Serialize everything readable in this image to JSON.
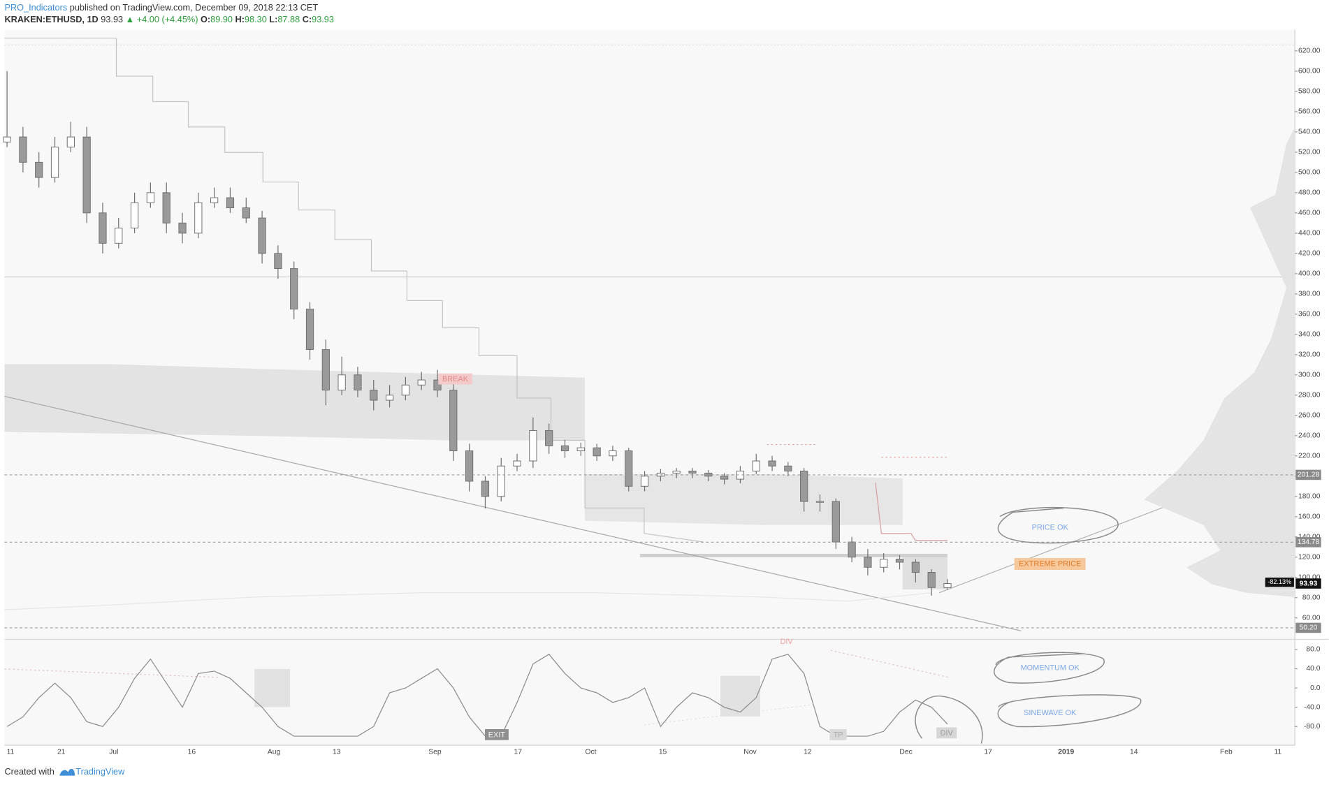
{
  "header": {
    "author": "PRO_Indicators",
    "published": "published on TradingView.com, December 09, 2018 22:13 CET",
    "symbol": "KRAKEN:ETHUSD, 1D",
    "last": "93.93",
    "change": "▲ +4.00 (+4.45%)",
    "open_label": "O:",
    "open": "89.90",
    "high_label": "H:",
    "high": "98.30",
    "low_label": "L:",
    "low": "87.88",
    "close_label": "C:",
    "close": "93.93"
  },
  "x_labels": [
    "11",
    "21",
    "Jul",
    "16",
    "Aug",
    "13",
    "Sep",
    "17",
    "Oct",
    "15",
    "Nov",
    "12",
    "Dec",
    "17",
    "2019",
    "14",
    "Feb",
    "11"
  ],
  "annotations": {
    "break": "BREAK",
    "exit": "EXIT",
    "tp": "TP",
    "div_top": "DIV",
    "div_bottom": "DIV",
    "price_ok": "PRICE OK",
    "extreme_price": "EXTREME PRICE",
    "momentum_ok": "MOMENTUM OK",
    "sinewave_ok": "SINEWAVE OK"
  },
  "footer": {
    "created": "Created with",
    "brand": "TradingView"
  },
  "chart_data": [
    {
      "type": "candlestick",
      "up_color": "#ffffff",
      "down_color": "#9a9a9a",
      "edge_color": "#6f6f6f",
      "open": [
        530,
        535,
        510,
        495,
        525,
        535,
        460,
        430,
        445,
        470,
        480,
        450,
        440,
        470,
        475,
        465,
        455,
        420,
        405,
        365,
        325,
        285,
        300,
        285,
        275,
        280,
        290,
        295,
        285,
        225,
        195,
        180,
        210,
        215,
        245,
        230,
        225,
        228,
        220,
        225,
        190,
        200,
        203,
        205,
        203,
        200,
        197,
        205,
        215,
        210,
        205,
        175,
        175,
        135,
        120,
        110,
        118,
        115,
        105,
        89.9
      ],
      "high": [
        600,
        545,
        520,
        535,
        550,
        545,
        470,
        455,
        480,
        490,
        490,
        460,
        480,
        485,
        485,
        475,
        462,
        428,
        412,
        372,
        335,
        318,
        308,
        295,
        290,
        298,
        303,
        305,
        292,
        232,
        200,
        218,
        222,
        258,
        252,
        236,
        233,
        232,
        230,
        228,
        205,
        207,
        208,
        208,
        206,
        203,
        210,
        222,
        220,
        214,
        208,
        182,
        178,
        140,
        128,
        124,
        122,
        118,
        108,
        98.3
      ],
      "low": [
        525,
        500,
        485,
        490,
        520,
        450,
        420,
        425,
        440,
        465,
        440,
        430,
        435,
        465,
        460,
        450,
        410,
        395,
        355,
        315,
        270,
        280,
        278,
        265,
        268,
        275,
        285,
        278,
        215,
        185,
        168,
        175,
        205,
        208,
        222,
        218,
        220,
        215,
        215,
        185,
        185,
        195,
        198,
        198,
        195,
        192,
        193,
        202,
        205,
        200,
        165,
        165,
        128,
        115,
        102,
        105,
        108,
        95,
        82,
        87.88
      ],
      "close": [
        535,
        510,
        495,
        525,
        535,
        460,
        430,
        445,
        470,
        480,
        450,
        440,
        470,
        475,
        465,
        455,
        420,
        405,
        365,
        325,
        285,
        300,
        285,
        275,
        280,
        290,
        295,
        285,
        225,
        195,
        180,
        210,
        215,
        245,
        230,
        225,
        228,
        220,
        225,
        190,
        200,
        203,
        205,
        203,
        200,
        197,
        205,
        215,
        210,
        205,
        175,
        175,
        135,
        120,
        110,
        118,
        115,
        105,
        90,
        93.93
      ],
      "ylim": [
        43,
        641
      ],
      "yticks": [
        {
          "value": 60,
          "label": "60.00"
        },
        {
          "value": 80,
          "label": "80.00"
        },
        {
          "value": 100,
          "label": "100.00"
        },
        {
          "value": 120,
          "label": "120.00"
        },
        {
          "value": 140,
          "label": "140.00"
        },
        {
          "value": 160,
          "label": "160.00"
        },
        {
          "value": 180,
          "label": "180.00"
        },
        {
          "value": 200,
          "label": "200.00"
        },
        {
          "value": 220,
          "label": "220.00"
        },
        {
          "value": 240,
          "label": "240.00"
        },
        {
          "value": 260,
          "label": "260.00"
        },
        {
          "value": 280,
          "label": "280.00"
        },
        {
          "value": 300,
          "label": "300.00"
        },
        {
          "value": 320,
          "label": "320.00"
        },
        {
          "value": 340,
          "label": "340.00"
        },
        {
          "value": 360,
          "label": "360.00"
        },
        {
          "value": 380,
          "label": "380.00"
        },
        {
          "value": 400,
          "label": "400.00"
        },
        {
          "value": 420,
          "label": "420.00"
        },
        {
          "value": 440,
          "label": "440.00"
        },
        {
          "value": 460,
          "label": "460.00"
        },
        {
          "value": 480,
          "label": "480.00"
        },
        {
          "value": 500,
          "label": "500.00"
        },
        {
          "value": 520,
          "label": "520.00"
        },
        {
          "value": 540,
          "label": "540.00"
        },
        {
          "value": 560,
          "label": "560.00"
        },
        {
          "value": 580,
          "label": "580.00"
        },
        {
          "value": 600,
          "label": "600.00"
        },
        {
          "value": 620,
          "label": "620.00"
        }
      ],
      "price_lines": [
        {
          "value": 201.28,
          "label": "201.28"
        },
        {
          "value": 134.78,
          "label": "134.78"
        },
        {
          "value": 50.2,
          "label": "50.20"
        }
      ],
      "last_price": {
        "value": 93.93,
        "label": "93.93"
      },
      "change_label": "-82.13%"
    },
    {
      "type": "line",
      "color": "#8a8a8a",
      "values": [
        -80,
        -60,
        -20,
        10,
        -20,
        -70,
        -80,
        -40,
        20,
        60,
        10,
        -40,
        30,
        35,
        20,
        -10,
        -40,
        -80,
        -100,
        -100,
        -100,
        -100,
        -100,
        -80,
        -10,
        0,
        20,
        40,
        0,
        -60,
        -100,
        -100,
        -30,
        50,
        70,
        30,
        0,
        -10,
        -30,
        -20,
        0,
        -80,
        -40,
        -10,
        -20,
        -40,
        -50,
        -20,
        60,
        70,
        30,
        -80,
        -100,
        -100,
        -100,
        -90,
        -50,
        -25,
        -40,
        -75
      ],
      "ylim": [
        -110,
        101
      ],
      "yticks": [
        {
          "value": 80,
          "label": "80.0"
        },
        {
          "value": 40,
          "label": "40.0"
        },
        {
          "value": 0,
          "label": "0.0"
        },
        {
          "value": -40,
          "label": "-40.0"
        },
        {
          "value": -80,
          "label": "-80.0"
        }
      ]
    }
  ]
}
